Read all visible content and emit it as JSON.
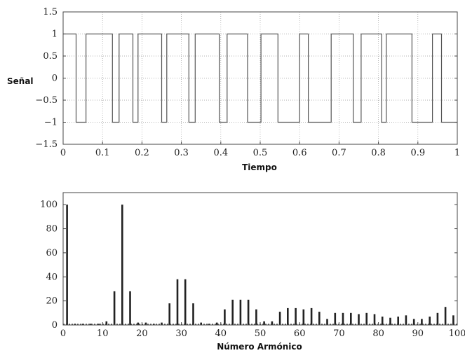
{
  "chart_data": [
    {
      "type": "line",
      "title": "",
      "xlabel": "Tiempo",
      "ylabel": "Señal",
      "xlim": [
        0,
        1
      ],
      "ylim": [
        -1.5,
        1.5
      ],
      "xticks": [
        0,
        0.1,
        0.2,
        0.3,
        0.4,
        0.5,
        0.6,
        0.7,
        0.8,
        0.9,
        1
      ],
      "yticks": [
        1.5,
        1,
        0.5,
        0,
        -0.5,
        -1,
        -1.5
      ],
      "xtick_labels": [
        "0",
        "0.1",
        "0.2",
        "0.3",
        "0.4",
        "0.5",
        "0.6",
        "0.7",
        "0.8",
        "0.9",
        "1"
      ],
      "ytick_labels": [
        "1.5",
        "1",
        "0.5",
        "0",
        "−0.5",
        "−1",
        "−1.5"
      ],
      "grid": true,
      "series": [
        {
          "x": [
            0.0,
            0.033,
            0.033,
            0.058,
            0.058,
            0.125,
            0.125,
            0.142,
            0.142,
            0.177,
            0.177,
            0.19,
            0.19,
            0.25,
            0.25,
            0.263,
            0.263,
            0.319,
            0.319,
            0.335,
            0.335,
            0.396,
            0.396,
            0.416,
            0.416,
            0.468,
            0.468,
            0.502,
            0.502,
            0.545,
            0.545,
            0.6,
            0.6,
            0.622,
            0.622,
            0.68,
            0.68,
            0.736,
            0.736,
            0.756,
            0.756,
            0.808,
            0.808,
            0.82,
            0.82,
            0.885,
            0.885,
            0.937,
            0.937,
            0.96,
            0.96,
            1.0
          ],
          "values": [
            1,
            1,
            -1,
            -1,
            1,
            1,
            -1,
            -1,
            1,
            1,
            -1,
            -1,
            1,
            1,
            -1,
            -1,
            1,
            1,
            -1,
            -1,
            1,
            1,
            -1,
            -1,
            1,
            1,
            -1,
            -1,
            1,
            1,
            -1,
            -1,
            1,
            1,
            -1,
            -1,
            1,
            1,
            -1,
            -1,
            1,
            1,
            -1,
            -1,
            1,
            1,
            -1,
            -1,
            1,
            1,
            -1,
            -1
          ]
        }
      ]
    },
    {
      "type": "bar",
      "title": "",
      "xlabel": "Número Armónico",
      "ylabel": "",
      "xlim": [
        0,
        100
      ],
      "ylim": [
        0,
        110
      ],
      "xticks": [
        0,
        10,
        20,
        30,
        40,
        50,
        60,
        70,
        80,
        90,
        100
      ],
      "yticks": [
        0,
        20,
        40,
        60,
        80,
        100
      ],
      "xtick_labels": [
        "0",
        "10",
        "20",
        "30",
        "40",
        "50",
        "60",
        "70",
        "80",
        "90",
        "100"
      ],
      "ytick_labels": [
        "0",
        "20",
        "40",
        "60",
        "80",
        "100"
      ],
      "grid": false,
      "x": [
        1,
        3,
        5,
        7,
        9,
        11,
        13,
        15,
        17,
        19,
        21,
        23,
        25,
        27,
        29,
        31,
        33,
        35,
        37,
        39,
        41,
        43,
        45,
        47,
        49,
        51,
        53,
        55,
        57,
        59,
        61,
        63,
        65,
        67,
        69,
        71,
        73,
        75,
        77,
        79,
        81,
        83,
        85,
        87,
        89,
        91,
        93,
        95,
        97,
        99
      ],
      "values": [
        100,
        1,
        1,
        1,
        1,
        3,
        28,
        100,
        28,
        2,
        2,
        1,
        2,
        18,
        38,
        38,
        18,
        2,
        1,
        2,
        13,
        21,
        21,
        21,
        13,
        3,
        3,
        11,
        14,
        14,
        13,
        14,
        11,
        5,
        10,
        10,
        10,
        9,
        10,
        9,
        7,
        6,
        7,
        8,
        5,
        5,
        7,
        10,
        15,
        8
      ]
    }
  ]
}
